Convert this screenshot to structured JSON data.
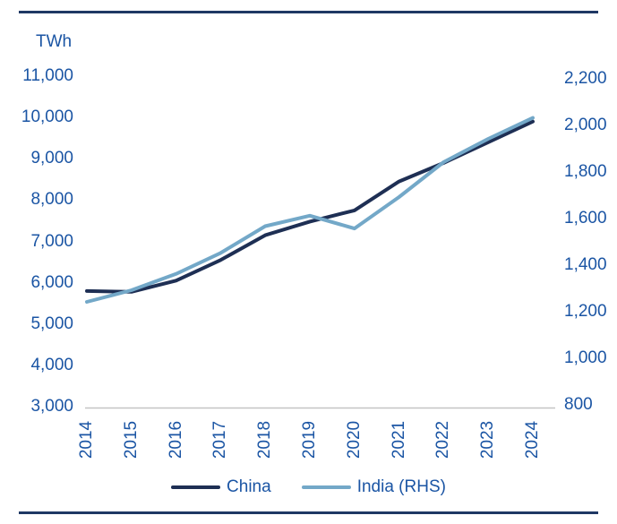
{
  "frame": {
    "background": "#ffffff",
    "border_rule_color": "#1f3864"
  },
  "chart_data": {
    "type": "line",
    "title": "",
    "unit_label": "TWh",
    "x": [
      2014,
      2015,
      2016,
      2017,
      2018,
      2019,
      2020,
      2021,
      2022,
      2023,
      2024
    ],
    "series": [
      {
        "name": "China",
        "axis": "left",
        "color": "#1e2f54",
        "values": [
          5800,
          5780,
          6050,
          6550,
          7150,
          7480,
          7750,
          8450,
          8900,
          9400,
          9900
        ]
      },
      {
        "name": "India (RHS)",
        "axis": "right",
        "color": "#73a8c8",
        "values": [
          1250,
          1300,
          1370,
          1460,
          1575,
          1620,
          1565,
          1700,
          1850,
          1950,
          2040
        ]
      }
    ],
    "left_axis": {
      "label": "TWh",
      "min": 3000,
      "max": 11000,
      "tick_step": 1000,
      "ticks": [
        3000,
        4000,
        5000,
        6000,
        7000,
        8000,
        9000,
        10000,
        11000
      ]
    },
    "right_axis": {
      "label": "",
      "min": 800,
      "max": 2200,
      "tick_step": 200,
      "ticks": [
        800,
        1000,
        1200,
        1400,
        1600,
        1800,
        2000,
        2200
      ]
    },
    "legend_position": "bottom",
    "gridlines": "none",
    "baseline_color": "#c4c4c4",
    "text_color": "#1b55a4"
  }
}
